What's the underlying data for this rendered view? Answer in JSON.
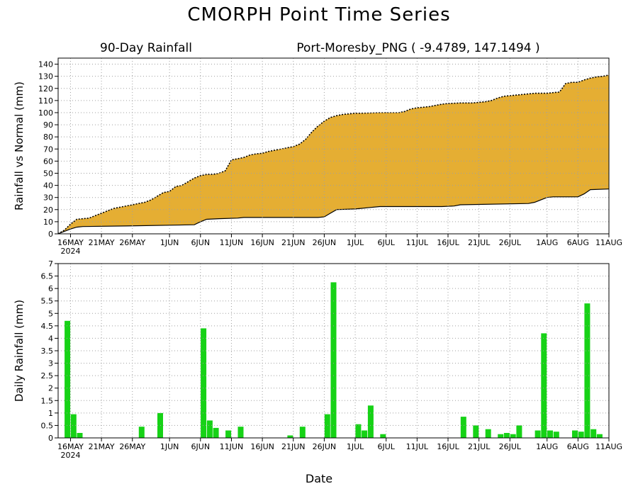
{
  "title": "CMORPH Point Time Series",
  "subtitle_left": "90-Day Rainfall",
  "subtitle_right": "Port-Moresby_PNG ( -9.4789, 147.1494 )",
  "xlabel": "Date",
  "x_ticks": [
    "16MAY",
    "21MAY",
    "26MAY",
    "1JUN",
    "6JUN",
    "11JUN",
    "16JUN",
    "21JUN",
    "26JUN",
    "1JUL",
    "6JUL",
    "11JUL",
    "16JUL",
    "21JUL",
    "26JUL",
    "1AUG",
    "6AUG",
    "11AUG"
  ],
  "x_year_label": "2024",
  "colors": {
    "actual_fill": "#e5ae33",
    "normal_fill": "#ffffff",
    "bar": "#16d216",
    "grid": "#a0a0a0"
  },
  "chart_data": [
    {
      "type": "area",
      "ylabel": "Rainfall vs Normal (mm)",
      "ylim": [
        0,
        145
      ],
      "yticks": [
        0,
        10,
        20,
        30,
        40,
        50,
        60,
        70,
        80,
        90,
        100,
        110,
        120,
        130,
        140
      ],
      "x_range": [
        "2024-05-14",
        "2024-08-11"
      ],
      "grid": true,
      "series": [
        {
          "style": "filled area, dotted outline",
          "points": [
            [
              "2024-05-14",
              0
            ],
            [
              "2024-05-15",
              3
            ],
            [
              "2024-05-16",
              8
            ],
            [
              "2024-05-17",
              12
            ],
            [
              "2024-05-18",
              12.5
            ],
            [
              "2024-05-19",
              13
            ],
            [
              "2024-05-20",
              15
            ],
            [
              "2024-05-21",
              17
            ],
            [
              "2024-05-22",
              19
            ],
            [
              "2024-05-23",
              21
            ],
            [
              "2024-05-24",
              22
            ],
            [
              "2024-05-25",
              23
            ],
            [
              "2024-05-26",
              24
            ],
            [
              "2024-05-27",
              25
            ],
            [
              "2024-05-28",
              26
            ],
            [
              "2024-05-29",
              28
            ],
            [
              "2024-05-30",
              31
            ],
            [
              "2024-05-31",
              34
            ],
            [
              "2024-06-01",
              35
            ],
            [
              "2024-06-02",
              39
            ],
            [
              "2024-06-03",
              40
            ],
            [
              "2024-06-04",
              43
            ],
            [
              "2024-06-05",
              46
            ],
            [
              "2024-06-06",
              48
            ],
            [
              "2024-06-07",
              49
            ],
            [
              "2024-06-08",
              49
            ],
            [
              "2024-06-09",
              50
            ],
            [
              "2024-06-10",
              52
            ],
            [
              "2024-06-11",
              61
            ],
            [
              "2024-06-12",
              62
            ],
            [
              "2024-06-13",
              63
            ],
            [
              "2024-06-14",
              65
            ],
            [
              "2024-06-15",
              66
            ],
            [
              "2024-06-16",
              66.5
            ],
            [
              "2024-06-17",
              68
            ],
            [
              "2024-06-18",
              69
            ],
            [
              "2024-06-19",
              70
            ],
            [
              "2024-06-20",
              71
            ],
            [
              "2024-06-21",
              72
            ],
            [
              "2024-06-22",
              74
            ],
            [
              "2024-06-23",
              78
            ],
            [
              "2024-06-24",
              84
            ],
            [
              "2024-06-25",
              89
            ],
            [
              "2024-06-26",
              93
            ],
            [
              "2024-06-27",
              96
            ],
            [
              "2024-06-28",
              97.5
            ],
            [
              "2024-06-29",
              98.5
            ],
            [
              "2024-06-30",
              99
            ],
            [
              "2024-07-01",
              99.5
            ],
            [
              "2024-07-02",
              99.5
            ],
            [
              "2024-07-05",
              100
            ],
            [
              "2024-07-07",
              100
            ],
            [
              "2024-07-08",
              100
            ],
            [
              "2024-07-09",
              101
            ],
            [
              "2024-07-10",
              103
            ],
            [
              "2024-07-11",
              104
            ],
            [
              "2024-07-12",
              104.5
            ],
            [
              "2024-07-13",
              105
            ],
            [
              "2024-07-14",
              106
            ],
            [
              "2024-07-15",
              107
            ],
            [
              "2024-07-16",
              107.5
            ],
            [
              "2024-07-18",
              108
            ],
            [
              "2024-07-20",
              108
            ],
            [
              "2024-07-21",
              108.5
            ],
            [
              "2024-07-22",
              109
            ],
            [
              "2024-07-23",
              110
            ],
            [
              "2024-07-24",
              112
            ],
            [
              "2024-07-25",
              113.5
            ],
            [
              "2024-07-26",
              114
            ],
            [
              "2024-07-27",
              114.5
            ],
            [
              "2024-07-28",
              115
            ],
            [
              "2024-07-29",
              115.5
            ],
            [
              "2024-07-30",
              116
            ],
            [
              "2024-07-31",
              116
            ],
            [
              "2024-08-01",
              116
            ],
            [
              "2024-08-02",
              116.5
            ],
            [
              "2024-08-03",
              117
            ],
            [
              "2024-08-04",
              124
            ],
            [
              "2024-08-05",
              125
            ],
            [
              "2024-08-06",
              125
            ],
            [
              "2024-08-07",
              127
            ],
            [
              "2024-08-08",
              128.5
            ],
            [
              "2024-08-09",
              129.5
            ],
            [
              "2024-08-10",
              130
            ],
            [
              "2024-08-11",
              131
            ]
          ]
        },
        {
          "style": "solid line",
          "points": [
            [
              "2024-05-14",
              0
            ],
            [
              "2024-05-15",
              2
            ],
            [
              "2024-05-16",
              4
            ],
            [
              "2024-05-17",
              5.5
            ],
            [
              "2024-05-18",
              6
            ],
            [
              "2024-05-25",
              6.5
            ],
            [
              "2024-06-05",
              7.5
            ],
            [
              "2024-06-06",
              10
            ],
            [
              "2024-06-07",
              12
            ],
            [
              "2024-06-09",
              12.5
            ],
            [
              "2024-06-12",
              13
            ],
            [
              "2024-06-13",
              13.5
            ],
            [
              "2024-06-25",
              13.5
            ],
            [
              "2024-06-26",
              14
            ],
            [
              "2024-06-27",
              17
            ],
            [
              "2024-06-28",
              20
            ],
            [
              "2024-07-01",
              20.5
            ],
            [
              "2024-07-03",
              21.5
            ],
            [
              "2024-07-05",
              22.5
            ],
            [
              "2024-07-15",
              22.5
            ],
            [
              "2024-07-17",
              23
            ],
            [
              "2024-07-18",
              24
            ],
            [
              "2024-07-29",
              25
            ],
            [
              "2024-07-30",
              26
            ],
            [
              "2024-07-31",
              28
            ],
            [
              "2024-08-01",
              30
            ],
            [
              "2024-08-02",
              30.5
            ],
            [
              "2024-08-06",
              30.5
            ],
            [
              "2024-08-07",
              33
            ],
            [
              "2024-08-08",
              36.5
            ],
            [
              "2024-08-11",
              37
            ]
          ]
        }
      ]
    },
    {
      "type": "bar",
      "ylabel": "Daily Rainfall (mm)",
      "ylim": [
        0,
        7
      ],
      "yticks": [
        "0",
        "0.5",
        "1",
        "1.5",
        "2",
        "2.5",
        "3",
        "3.5",
        "4",
        "4.5",
        "5",
        "5.5",
        "6",
        "6.5",
        "7"
      ],
      "x_range": [
        "2024-05-14",
        "2024-08-11"
      ],
      "grid": true,
      "bars": [
        [
          "2024-05-15",
          4.7
        ],
        [
          "2024-05-16",
          0.95
        ],
        [
          "2024-05-17",
          0.2
        ],
        [
          "2024-05-27",
          0.45
        ],
        [
          "2024-05-30",
          1.0
        ],
        [
          "2024-06-06",
          4.4
        ],
        [
          "2024-06-07",
          0.7
        ],
        [
          "2024-06-08",
          0.4
        ],
        [
          "2024-06-10",
          0.3
        ],
        [
          "2024-06-12",
          0.45
        ],
        [
          "2024-06-20",
          0.1
        ],
        [
          "2024-06-22",
          0.45
        ],
        [
          "2024-06-26",
          0.95
        ],
        [
          "2024-06-27",
          6.25
        ],
        [
          "2024-07-01",
          0.55
        ],
        [
          "2024-07-02",
          0.3
        ],
        [
          "2024-07-03",
          1.3
        ],
        [
          "2024-07-05",
          0.15
        ],
        [
          "2024-07-18",
          0.85
        ],
        [
          "2024-07-20",
          0.5
        ],
        [
          "2024-07-22",
          0.35
        ],
        [
          "2024-07-24",
          0.15
        ],
        [
          "2024-07-25",
          0.2
        ],
        [
          "2024-07-26",
          0.15
        ],
        [
          "2024-07-27",
          0.5
        ],
        [
          "2024-07-30",
          0.3
        ],
        [
          "2024-07-31",
          4.2
        ],
        [
          "2024-08-01",
          0.3
        ],
        [
          "2024-08-02",
          0.25
        ],
        [
          "2024-08-05",
          0.3
        ],
        [
          "2024-08-06",
          0.25
        ],
        [
          "2024-08-07",
          5.4
        ],
        [
          "2024-08-08",
          0.35
        ],
        [
          "2024-08-09",
          0.15
        ]
      ]
    }
  ]
}
